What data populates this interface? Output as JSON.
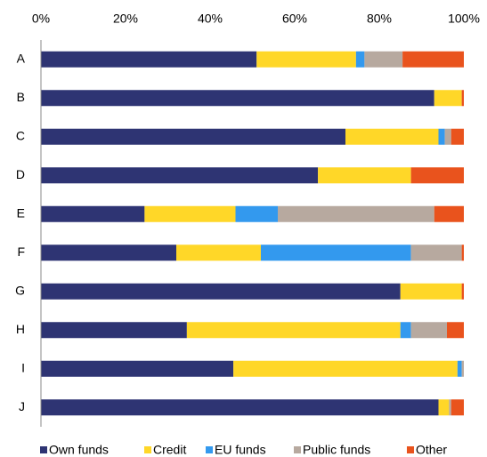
{
  "chart_data": {
    "type": "stacked-bar-horizontal",
    "categories": [
      "A",
      "B",
      "C",
      "D",
      "E",
      "F",
      "G",
      "H",
      "I",
      "J"
    ],
    "series": [
      {
        "name": "Own funds",
        "color": "#2e3473",
        "values": [
          51,
          93,
          72,
          65.5,
          24.5,
          32,
          85,
          34.5,
          45.5,
          94
        ]
      },
      {
        "name": "Credit",
        "color": "#ffd728",
        "values": [
          23.5,
          6.5,
          22,
          22,
          21.5,
          20,
          14.5,
          50.5,
          53,
          2.5
        ]
      },
      {
        "name": "EU funds",
        "color": "#3399ee",
        "values": [
          2,
          0,
          1.5,
          0,
          10,
          35.5,
          0,
          2.5,
          1,
          0
        ]
      },
      {
        "name": "Public funds",
        "color": "#b7a99f",
        "values": [
          9,
          0,
          1.5,
          0,
          37,
          12,
          0,
          8.5,
          0.5,
          0.5
        ]
      },
      {
        "name": "Other",
        "color": "#e9531d",
        "values": [
          14.5,
          0.5,
          3,
          12.5,
          7,
          0.5,
          0.5,
          4,
          0,
          3
        ]
      }
    ],
    "xlim": [
      0,
      100
    ],
    "xticks": [
      {
        "value": 0,
        "label": "0%"
      },
      {
        "value": 20,
        "label": "20%"
      },
      {
        "value": 40,
        "label": "40%"
      },
      {
        "value": 60,
        "label": "60%"
      },
      {
        "value": 80,
        "label": "80%"
      },
      {
        "value": 100,
        "label": "100%"
      }
    ],
    "legend": "bottom"
  }
}
